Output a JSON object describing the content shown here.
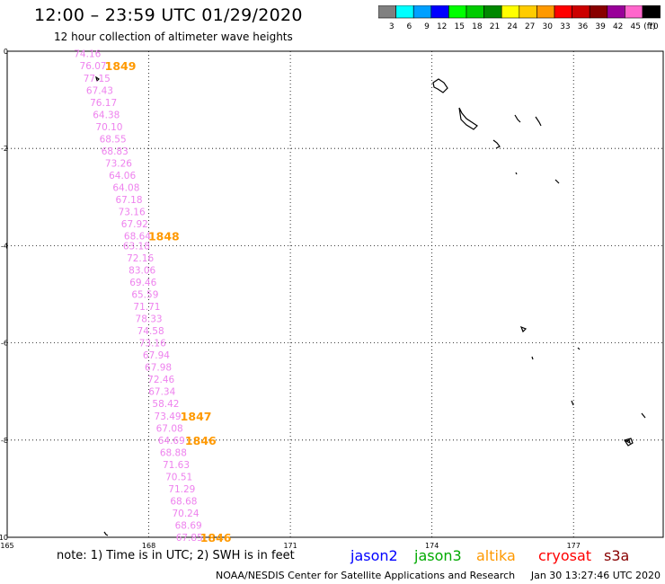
{
  "header": {
    "title": "12:00 – 23:59 UTC 01/29/2020",
    "subtitle": "12 hour collection of altimeter wave heights"
  },
  "legend": {
    "unit": "(ft)",
    "bins": [
      {
        "label": "3",
        "color": "#808080"
      },
      {
        "label": "6",
        "color": "#00ffff"
      },
      {
        "label": "9",
        "color": "#00a0ff"
      },
      {
        "label": "12",
        "color": "#0000ff"
      },
      {
        "label": "15",
        "color": "#00ff00"
      },
      {
        "label": "18",
        "color": "#00cc00"
      },
      {
        "label": "21",
        "color": "#008800"
      },
      {
        "label": "24",
        "color": "#ffff00"
      },
      {
        "label": "27",
        "color": "#ffcc00"
      },
      {
        "label": "30",
        "color": "#ff9900"
      },
      {
        "label": "33",
        "color": "#ff0000"
      },
      {
        "label": "36",
        "color": "#cc0000"
      },
      {
        "label": "39",
        "color": "#880000"
      },
      {
        "label": "42",
        "color": "#990099"
      },
      {
        "label": "45",
        "color": "#ff66cc"
      },
      {
        "label": "70",
        "color": "#000000"
      }
    ]
  },
  "axes": {
    "lon_labels": [
      "165",
      "168",
      "171",
      "174",
      "177"
    ],
    "lat_labels": [
      "0",
      "-2",
      "-4",
      "-6",
      "-8",
      "-10"
    ],
    "lon_range": [
      165,
      178.9
    ],
    "lat_range": [
      -10,
      0
    ]
  },
  "track_color": "#ee82ee",
  "time_color": "#ff9900",
  "track": {
    "readings": [
      {
        "lat": -0.05,
        "lon": 166.7,
        "value": "74.16"
      },
      {
        "lat": -0.3,
        "lon": 166.82,
        "value": "76.07"
      },
      {
        "lat": -0.55,
        "lon": 166.9,
        "value": "77.15"
      },
      {
        "lat": -0.8,
        "lon": 166.96,
        "value": "67.43"
      },
      {
        "lat": -1.05,
        "lon": 167.04,
        "value": "76.17"
      },
      {
        "lat": -1.3,
        "lon": 167.1,
        "value": "64.38"
      },
      {
        "lat": -1.55,
        "lon": 167.16,
        "value": "70.10"
      },
      {
        "lat": -1.8,
        "lon": 167.24,
        "value": "68.55"
      },
      {
        "lat": -2.05,
        "lon": 167.28,
        "value": "68.83"
      },
      {
        "lat": -2.3,
        "lon": 167.36,
        "value": "73.26"
      },
      {
        "lat": -2.55,
        "lon": 167.44,
        "value": "64.06"
      },
      {
        "lat": -2.8,
        "lon": 167.52,
        "value": "64.08"
      },
      {
        "lat": -3.05,
        "lon": 167.58,
        "value": "67.18"
      },
      {
        "lat": -3.3,
        "lon": 167.64,
        "value": "73.16"
      },
      {
        "lat": -3.55,
        "lon": 167.7,
        "value": "67.92"
      },
      {
        "lat": -3.8,
        "lon": 167.76,
        "value": "68.64"
      },
      {
        "lat": -4.0,
        "lon": 167.74,
        "value": "63.18"
      },
      {
        "lat": -4.25,
        "lon": 167.82,
        "value": "72.16"
      },
      {
        "lat": -4.5,
        "lon": 167.86,
        "value": "83.06"
      },
      {
        "lat": -4.75,
        "lon": 167.88,
        "value": "69.46"
      },
      {
        "lat": -5.0,
        "lon": 167.92,
        "value": "65.59"
      },
      {
        "lat": -5.25,
        "lon": 167.96,
        "value": "71.71"
      },
      {
        "lat": -5.5,
        "lon": 168.0,
        "value": "78.33"
      },
      {
        "lat": -5.75,
        "lon": 168.04,
        "value": "74.58"
      },
      {
        "lat": -6.0,
        "lon": 168.08,
        "value": "73.16"
      },
      {
        "lat": -6.25,
        "lon": 168.16,
        "value": "67.94"
      },
      {
        "lat": -6.5,
        "lon": 168.2,
        "value": "67.98"
      },
      {
        "lat": -6.75,
        "lon": 168.26,
        "value": "72.46"
      },
      {
        "lat": -7.0,
        "lon": 168.28,
        "value": "67.34"
      },
      {
        "lat": -7.25,
        "lon": 168.36,
        "value": "58.42"
      },
      {
        "lat": -7.5,
        "lon": 168.4,
        "value": "73.49"
      },
      {
        "lat": -7.75,
        "lon": 168.44,
        "value": "67.08"
      },
      {
        "lat": -8.0,
        "lon": 168.48,
        "value": "64.69"
      },
      {
        "lat": -8.25,
        "lon": 168.52,
        "value": "68.88"
      },
      {
        "lat": -8.5,
        "lon": 168.58,
        "value": "71.63"
      },
      {
        "lat": -8.75,
        "lon": 168.64,
        "value": "70.51"
      },
      {
        "lat": -9.0,
        "lon": 168.7,
        "value": "71.29"
      },
      {
        "lat": -9.25,
        "lon": 168.74,
        "value": "68.68"
      },
      {
        "lat": -9.5,
        "lon": 168.78,
        "value": "70.24"
      },
      {
        "lat": -9.75,
        "lon": 168.84,
        "value": "68.69"
      },
      {
        "lat": -10.0,
        "lon": 168.86,
        "value": "67.85"
      }
    ],
    "times": [
      {
        "lat": -0.3,
        "lon": 167.4,
        "label": "1849"
      },
      {
        "lat": -3.8,
        "lon": 168.32,
        "label": "1848"
      },
      {
        "lat": -7.5,
        "lon": 169.0,
        "label": "1847"
      },
      {
        "lat": -8.0,
        "lon": 169.1,
        "label": "1846"
      },
      {
        "lat": -10.0,
        "lon": 169.42,
        "label": "1846"
      }
    ]
  },
  "notes": {
    "text": "note: 1) Time is in UTC; 2) SWH is in feet"
  },
  "satellites": [
    {
      "name": "jason2",
      "color": "#0000ff"
    },
    {
      "name": "jason3",
      "color": "#00aa00"
    },
    {
      "name": "altika",
      "color": "#ff9900"
    },
    {
      "name": "cryosat",
      "color": "#ff0000"
    },
    {
      "name": "s3a",
      "color": "#880000"
    }
  ],
  "footer": {
    "credit": "NOAA/NESDIS Center for Satellite Applications and Research",
    "generated": "Jan 30 13:27:46 UTC 2020"
  }
}
